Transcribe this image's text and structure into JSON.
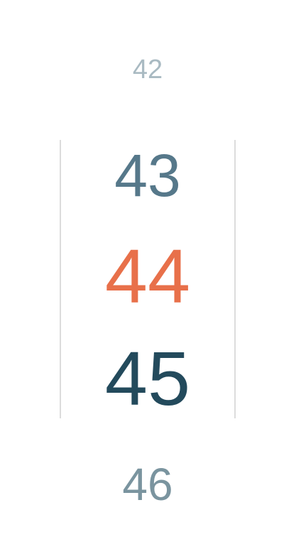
{
  "picker": {
    "values": [
      "42",
      "43",
      "44",
      "45",
      "46"
    ],
    "selected": "44",
    "colors": {
      "selected": "#e8704a",
      "near": "#234a5c",
      "mid": "#56788a",
      "far": "#a9bac2",
      "divider": "#dcdcdc"
    }
  }
}
